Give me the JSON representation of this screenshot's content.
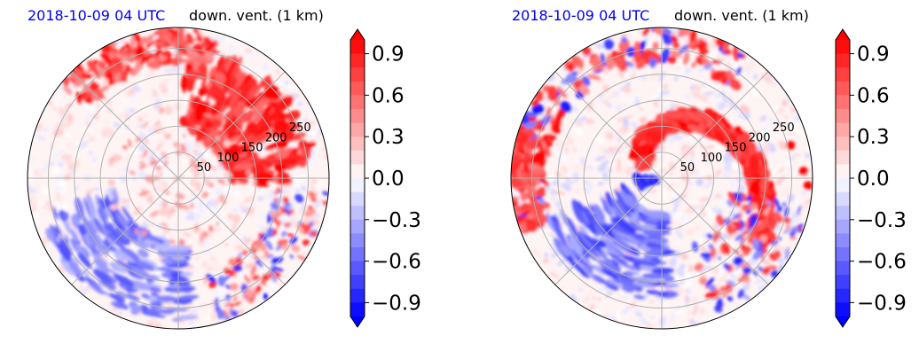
{
  "chart_data": [
    {
      "type": "heatmap",
      "projection": "polar",
      "title_left": "2018-10-09 04 UTC",
      "title_right": "down. vent. (1 km)",
      "radial_ticks": [
        50,
        100,
        150,
        200,
        250
      ],
      "colorbar": {
        "min": -1.0,
        "max": 1.0,
        "step": 0.1,
        "extend": "both",
        "ticks": [
          0.9,
          0.6,
          0.3,
          0.0,
          -0.3,
          -0.6,
          -0.9
        ],
        "tick_labels": [
          "0.9",
          "0.6",
          "0.3",
          "0.0",
          "−0.3",
          "−0.6",
          "−0.9"
        ],
        "cmap": "bwr"
      },
      "colors": {
        "positive": "#ff0000",
        "negative": "#0000ff",
        "neutral": "#ffffff",
        "title_left": "#0000ee"
      },
      "pattern": "strong positive arc in the north-east quadrant, weaker negative streaks south-west"
    },
    {
      "type": "heatmap",
      "projection": "polar",
      "title_left": "2018-10-09 04 UTC",
      "title_right": "down. vent. (1 km)",
      "radial_ticks": [
        50,
        100,
        150,
        200,
        250
      ],
      "colorbar": {
        "min": -1.0,
        "max": 1.0,
        "step": 0.1,
        "extend": "both",
        "ticks": [
          0.9,
          0.6,
          0.3,
          0.0,
          -0.3,
          -0.6,
          -0.9
        ],
        "tick_labels": [
          "0.9",
          "0.6",
          "0.3",
          "0.0",
          "−0.3",
          "−0.6",
          "−0.9"
        ],
        "cmap": "bwr"
      },
      "colors": {
        "positive": "#ff0000",
        "negative": "#0000ff",
        "neutral": "#ffffff",
        "title_left": "#0000ee"
      },
      "pattern": "spiral positive band wrapping from north to east, negative band south-west"
    }
  ]
}
